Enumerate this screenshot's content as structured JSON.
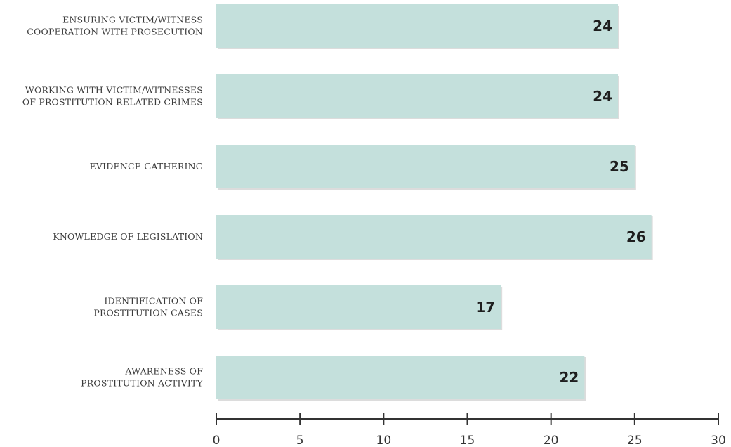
{
  "chart_data": {
    "type": "bar",
    "orientation": "horizontal",
    "categories": [
      [
        "ENSURING VICTIM/WITNESS",
        "COOPERATION WITH PROSECUTION"
      ],
      [
        "WORKING WITH VICTIM/WITNESSES",
        "OF PROSTITUTION RELATED CRIMES"
      ],
      [
        "EVIDENCE GATHERING"
      ],
      [
        "KNOWLEDGE OF  LEGISLATION"
      ],
      [
        "IDENTIFICATION OF",
        "PROSTITUTION CASES"
      ],
      [
        "AWARENESS OF",
        "PROSTITUTION ACTIVITY"
      ]
    ],
    "values": [
      24,
      24,
      25,
      26,
      17,
      22
    ],
    "data_labels": [
      "24",
      "24",
      "25",
      "26",
      "17",
      "22"
    ],
    "xlim": [
      0,
      30
    ],
    "xticks": [
      0,
      5,
      10,
      15,
      20,
      25,
      30
    ],
    "xtick_labels": [
      "0",
      "5",
      "10",
      "15",
      "20",
      "25",
      "30"
    ],
    "title": "",
    "xlabel": "",
    "ylabel": "",
    "grid": false,
    "legend": "none",
    "colors": {
      "bar": "#c4e0dc",
      "bar_shadow": "#dcdcdc",
      "axis": "#333333"
    }
  }
}
